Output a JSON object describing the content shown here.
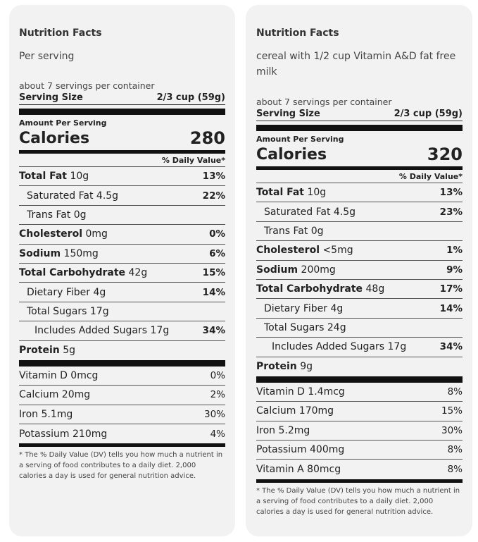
{
  "left": {
    "title": "Nutrition Facts",
    "subtitle": "Per serving",
    "servings_per_container": "about 7 servings per container",
    "serving_size_label": "Serving Size",
    "serving_size_value": "2/3 cup (59g)",
    "amount_per_serving": "Amount Per Serving",
    "calories_label": "Calories",
    "calories_value": "280",
    "daily_value_header": "% Daily Value*",
    "nutrients": [
      {
        "name": "Total Fat",
        "amount": "10g",
        "dv": "13%"
      },
      {
        "name": "Saturated Fat",
        "amount": "4.5g",
        "dv": "22%"
      },
      {
        "name": "Trans Fat",
        "amount": "0g",
        "dv": ""
      },
      {
        "name": "Cholesterol",
        "amount": "0mg",
        "dv": "0%"
      },
      {
        "name": "Sodium",
        "amount": "150mg",
        "dv": "6%"
      },
      {
        "name": "Total Carbohydrate",
        "amount": "42g",
        "dv": "15%"
      },
      {
        "name": "Dietary Fiber",
        "amount": "4g",
        "dv": "14%"
      },
      {
        "name": "Total Sugars",
        "amount": "17g",
        "dv": ""
      },
      {
        "name": "Includes Added Sugars",
        "amount": "17g",
        "dv": "34%"
      },
      {
        "name": "Protein",
        "amount": "5g",
        "dv": ""
      }
    ],
    "vitamins": [
      {
        "label": "Vitamin D 0mcg",
        "dv": "0%"
      },
      {
        "label": "Calcium 20mg",
        "dv": "2%"
      },
      {
        "label": "Iron 5.1mg",
        "dv": "30%"
      },
      {
        "label": "Potassium 210mg",
        "dv": "4%"
      }
    ],
    "footnote": "* The % Daily Value (DV) tells you how much a nutrient in a serving of food contributes to a daily diet. 2,000 calories a day is used for general nutrition advice."
  },
  "right": {
    "title": "Nutrition Facts",
    "subtitle": "cereal with 1/2 cup Vitamin A&D fat free milk",
    "servings_per_container": "about 7 servings per container",
    "serving_size_label": "Serving Size",
    "serving_size_value": "2/3 cup (59g)",
    "amount_per_serving": "Amount Per Serving",
    "calories_label": "Calories",
    "calories_value": "320",
    "daily_value_header": "% Daily Value*",
    "nutrients": [
      {
        "name": "Total Fat",
        "amount": "10g",
        "dv": "13%"
      },
      {
        "name": "Saturated Fat",
        "amount": "4.5g",
        "dv": "23%"
      },
      {
        "name": "Trans Fat",
        "amount": "0g",
        "dv": ""
      },
      {
        "name": "Cholesterol",
        "amount": "<5mg",
        "dv": "1%"
      },
      {
        "name": "Sodium",
        "amount": "200mg",
        "dv": "9%"
      },
      {
        "name": "Total Carbohydrate",
        "amount": "48g",
        "dv": "17%"
      },
      {
        "name": "Dietary Fiber",
        "amount": "4g",
        "dv": "14%"
      },
      {
        "name": "Total Sugars",
        "amount": "24g",
        "dv": ""
      },
      {
        "name": "Includes Added Sugars",
        "amount": "17g",
        "dv": "34%"
      },
      {
        "name": "Protein",
        "amount": "9g",
        "dv": ""
      }
    ],
    "vitamins": [
      {
        "label": "Vitamin D 1.4mcg",
        "dv": "8%"
      },
      {
        "label": "Calcium 170mg",
        "dv": "15%"
      },
      {
        "label": "Iron 5.2mg",
        "dv": "30%"
      },
      {
        "label": "Potassium 400mg",
        "dv": "8%"
      },
      {
        "label": "Vitamin A 80mcg",
        "dv": "8%"
      }
    ],
    "footnote": "* The % Daily Value (DV) tells you how much a nutrient in a serving of food contributes to a daily diet. 2,000 calories a day is used for general nutrition advice."
  }
}
